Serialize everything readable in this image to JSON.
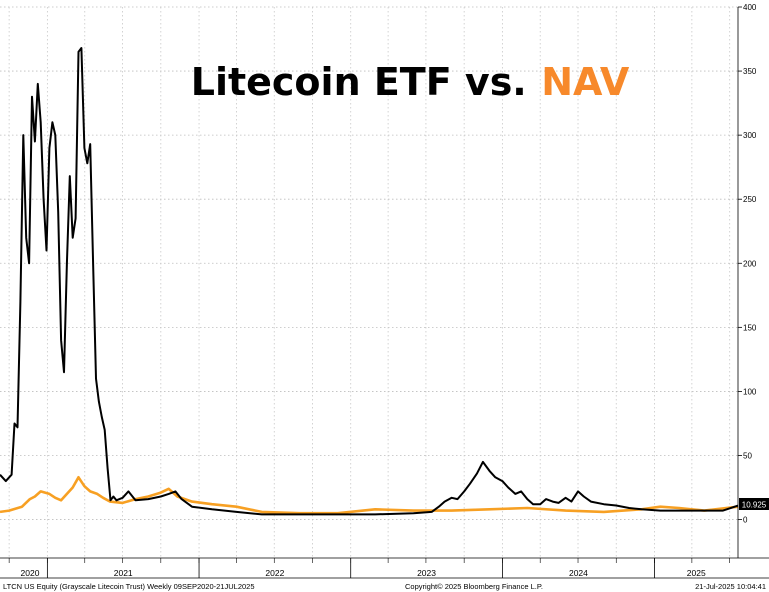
{
  "chart_data": {
    "type": "line",
    "title_part1": "Litecoin ETF vs.",
    "title_part2": "NAV",
    "title_part2_color": "#f7892b",
    "x_range": [
      "2020-09-09",
      "2025-07-21"
    ],
    "ylim": [
      -30,
      400
    ],
    "yticks": [
      0,
      50,
      100,
      150,
      200,
      250,
      300,
      350,
      400
    ],
    "xtick_labels": [
      {
        "label": "2020",
        "date": "2020-09-09"
      },
      {
        "label": "2021",
        "date": "2021-01-01"
      },
      {
        "label": "2022",
        "date": "2022-01-01"
      },
      {
        "label": "2023",
        "date": "2023-01-01"
      },
      {
        "label": "2024",
        "date": "2024-01-01"
      },
      {
        "label": "2025",
        "date": "2025-01-01"
      }
    ],
    "grid": true,
    "last_value_label": "10.925",
    "series": [
      {
        "color": "#000000",
        "points": [
          [
            "2020-09-09",
            35
          ],
          [
            "2020-09-23",
            30
          ],
          [
            "2020-10-07",
            35
          ],
          [
            "2020-10-14",
            75
          ],
          [
            "2020-10-21",
            72
          ],
          [
            "2020-10-28",
            170
          ],
          [
            "2020-11-04",
            300
          ],
          [
            "2020-11-11",
            220
          ],
          [
            "2020-11-18",
            200
          ],
          [
            "2020-11-25",
            330
          ],
          [
            "2020-12-02",
            295
          ],
          [
            "2020-12-09",
            340
          ],
          [
            "2020-12-16",
            310
          ],
          [
            "2020-12-23",
            250
          ],
          [
            "2020-12-30",
            210
          ],
          [
            "2021-01-06",
            290
          ],
          [
            "2021-01-13",
            310
          ],
          [
            "2021-01-20",
            300
          ],
          [
            "2021-01-27",
            240
          ],
          [
            "2021-02-03",
            140
          ],
          [
            "2021-02-10",
            115
          ],
          [
            "2021-02-17",
            200
          ],
          [
            "2021-02-24",
            268
          ],
          [
            "2021-03-03",
            220
          ],
          [
            "2021-03-10",
            235
          ],
          [
            "2021-03-17",
            365
          ],
          [
            "2021-03-24",
            368
          ],
          [
            "2021-03-31",
            290
          ],
          [
            "2021-04-07",
            278
          ],
          [
            "2021-04-14",
            293
          ],
          [
            "2021-04-21",
            200
          ],
          [
            "2021-04-28",
            110
          ],
          [
            "2021-05-05",
            92
          ],
          [
            "2021-05-12",
            80
          ],
          [
            "2021-05-19",
            70
          ],
          [
            "2021-05-26",
            40
          ],
          [
            "2021-06-02",
            15
          ],
          [
            "2021-06-09",
            18
          ],
          [
            "2021-06-16",
            15
          ],
          [
            "2021-07-01",
            17
          ],
          [
            "2021-07-15",
            22
          ],
          [
            "2021-08-01",
            15
          ],
          [
            "2021-09-01",
            16
          ],
          [
            "2021-10-01",
            18
          ],
          [
            "2021-10-20",
            20
          ],
          [
            "2021-11-05",
            22
          ],
          [
            "2021-11-20",
            16
          ],
          [
            "2021-12-15",
            10
          ],
          [
            "2022-02-01",
            8
          ],
          [
            "2022-04-01",
            6
          ],
          [
            "2022-06-01",
            4
          ],
          [
            "2022-09-01",
            4
          ],
          [
            "2022-12-01",
            4
          ],
          [
            "2023-03-01",
            4
          ],
          [
            "2023-06-01",
            5
          ],
          [
            "2023-07-15",
            6
          ],
          [
            "2023-08-01",
            10
          ],
          [
            "2023-08-15",
            14
          ],
          [
            "2023-09-01",
            17
          ],
          [
            "2023-09-15",
            16
          ],
          [
            "2023-10-01",
            22
          ],
          [
            "2023-10-15",
            28
          ],
          [
            "2023-11-01",
            36
          ],
          [
            "2023-11-15",
            45
          ],
          [
            "2023-12-01",
            38
          ],
          [
            "2023-12-15",
            33
          ],
          [
            "2024-01-01",
            30
          ],
          [
            "2024-01-15",
            25
          ],
          [
            "2024-02-01",
            20
          ],
          [
            "2024-02-15",
            22
          ],
          [
            "2024-03-01",
            16
          ],
          [
            "2024-03-15",
            12
          ],
          [
            "2024-04-01",
            12
          ],
          [
            "2024-04-15",
            16
          ],
          [
            "2024-05-01",
            14
          ],
          [
            "2024-05-15",
            13
          ],
          [
            "2024-06-01",
            17
          ],
          [
            "2024-06-15",
            14
          ],
          [
            "2024-07-01",
            22
          ],
          [
            "2024-07-15",
            18
          ],
          [
            "2024-08-01",
            14
          ],
          [
            "2024-09-01",
            12
          ],
          [
            "2024-10-01",
            11
          ],
          [
            "2024-11-01",
            9
          ],
          [
            "2024-12-01",
            8
          ],
          [
            "2025-01-15",
            7
          ],
          [
            "2025-03-01",
            7
          ],
          [
            "2025-05-01",
            7
          ],
          [
            "2025-06-15",
            7
          ],
          [
            "2025-07-21",
            10.925
          ]
        ]
      },
      {
        "color": "#f7a023",
        "points": [
          [
            "2020-09-09",
            6
          ],
          [
            "2020-10-01",
            7
          ],
          [
            "2020-11-01",
            10
          ],
          [
            "2020-11-20",
            16
          ],
          [
            "2020-12-02",
            18
          ],
          [
            "2020-12-16",
            22
          ],
          [
            "2021-01-06",
            20
          ],
          [
            "2021-01-20",
            17
          ],
          [
            "2021-02-03",
            15
          ],
          [
            "2021-02-17",
            20
          ],
          [
            "2021-03-03",
            25
          ],
          [
            "2021-03-17",
            33
          ],
          [
            "2021-03-31",
            26
          ],
          [
            "2021-04-14",
            22
          ],
          [
            "2021-05-01",
            20
          ],
          [
            "2021-05-15",
            17
          ],
          [
            "2021-06-01",
            14
          ],
          [
            "2021-07-01",
            13
          ],
          [
            "2021-08-01",
            16
          ],
          [
            "2021-09-01",
            18
          ],
          [
            "2021-10-01",
            21
          ],
          [
            "2021-10-20",
            24
          ],
          [
            "2021-11-10",
            18
          ],
          [
            "2021-12-15",
            14
          ],
          [
            "2022-02-01",
            12
          ],
          [
            "2022-04-01",
            10
          ],
          [
            "2022-06-01",
            6
          ],
          [
            "2022-09-01",
            5
          ],
          [
            "2022-12-01",
            5
          ],
          [
            "2023-03-01",
            8
          ],
          [
            "2023-06-01",
            7
          ],
          [
            "2023-09-01",
            7
          ],
          [
            "2023-12-01",
            8
          ],
          [
            "2024-03-01",
            9
          ],
          [
            "2024-06-01",
            7
          ],
          [
            "2024-09-01",
            6
          ],
          [
            "2024-12-01",
            8
          ],
          [
            "2025-01-15",
            10
          ],
          [
            "2025-03-01",
            9
          ],
          [
            "2025-05-01",
            7
          ],
          [
            "2025-07-21",
            10
          ]
        ]
      }
    ]
  },
  "footer": {
    "left": "LTCN US Equity (Grayscale Litecoin Trust)  Weekly 09SEP2020-21JUL2025",
    "center": "Copyright© 2025 Bloomberg Finance L.P.",
    "right": "21-Jul-2025 10:04:41"
  }
}
